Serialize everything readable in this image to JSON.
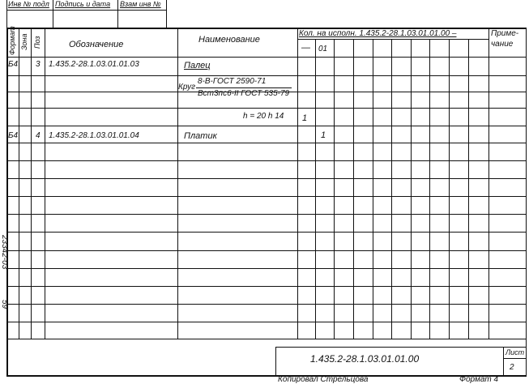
{
  "top_stamp": {
    "inv_podl": "Инв № подл",
    "podpis_data": "Подпись и дата",
    "vzam_inv": "Взам инв №"
  },
  "header": {
    "format": "Формат",
    "zona": "Зона",
    "poz": "Поз",
    "oboznachenie": "Обозначение",
    "naimenovanie": "Наименование",
    "kol_title": "Кол. на исполн. 1.435.2-28.1.03.01.01.00 –",
    "kol_cols": [
      "—",
      "01"
    ],
    "primechanie_1": "Приме-",
    "primechanie_2": "чание"
  },
  "rows": [
    {
      "format": "Б4",
      "poz": "3",
      "oboznachenie": "1.435.2-28.1.03.01.01.03",
      "naimenovanie": "Палец"
    },
    {
      "naimenovanie_prefix": "Круг",
      "naimenovanie_num": "8-В-ГОСТ 2590-71",
      "naimenovanie_den": "Вст3пс6-II ГОСТ 535-79"
    },
    {
      "naimenovanie": "h = 20 h 14",
      "qty_dash": "1"
    },
    {
      "format": "Б4",
      "poz": "4",
      "oboznachenie": "1.435.2-28.1.03.01.01.04",
      "naimenovanie": "Платик",
      "qty_01": "1"
    }
  ],
  "side_stamp": {
    "number": "23342-03",
    "sheet_code": "59"
  },
  "title_block": {
    "designation": "1.435.2-28.1.03.01.01.00",
    "list_label": "Лист",
    "list_number": "2"
  },
  "footer": {
    "copied": "Копировал Стрельцова",
    "format": "Формат 4"
  }
}
